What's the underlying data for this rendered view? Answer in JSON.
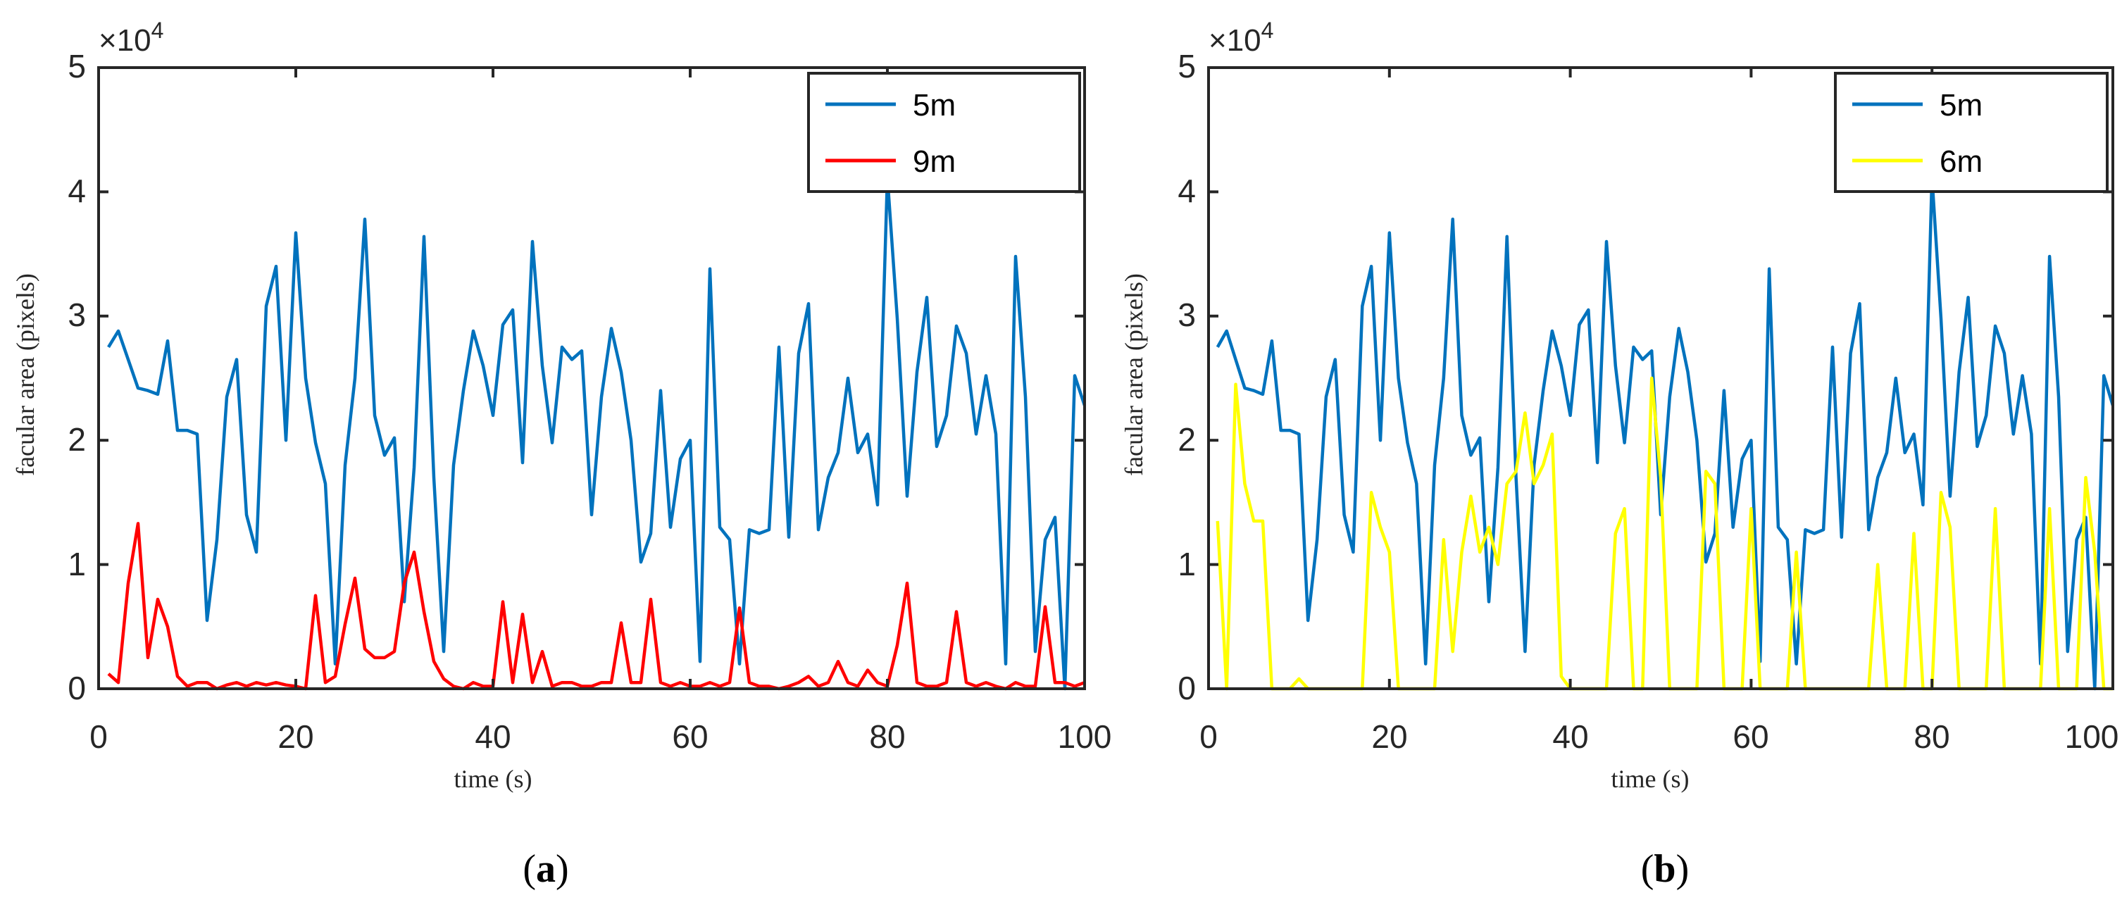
{
  "chart_data": [
    {
      "type": "line",
      "panel_label": {
        "open": "(",
        "letter": "a",
        "close": ")"
      },
      "xlabel": "time (s)",
      "ylabel": "facular area (pixels)",
      "y_exponent": {
        "base": "×10",
        "power": "4"
      },
      "xlim": [
        0,
        100
      ],
      "ylim": [
        0,
        5
      ],
      "xticks": [
        "0",
        "20",
        "40",
        "60",
        "80",
        "100"
      ],
      "yticks": [
        "0",
        "1",
        "2",
        "3",
        "4",
        "5"
      ],
      "legend_position": "top-right",
      "series": [
        {
          "name": "5m",
          "color": "#0072BD",
          "x": [
            1,
            2,
            3,
            4,
            5,
            6,
            7,
            8,
            9,
            10,
            11,
            12,
            13,
            14,
            15,
            16,
            17,
            18,
            19,
            20,
            21,
            22,
            23,
            24,
            25,
            26,
            27,
            28,
            29,
            30,
            31,
            32,
            33,
            34,
            35,
            36,
            37,
            38,
            39,
            40,
            41,
            42,
            43,
            44,
            45,
            46,
            47,
            48,
            49,
            50,
            51,
            52,
            53,
            54,
            55,
            56,
            57,
            58,
            59,
            60,
            61,
            62,
            63,
            64,
            65,
            66,
            67,
            68,
            69,
            70,
            71,
            72,
            73,
            74,
            75,
            76,
            77,
            78,
            79,
            80,
            81,
            82,
            83,
            84,
            85,
            86,
            87,
            88,
            89,
            90,
            91,
            92,
            93,
            94,
            95,
            96,
            97,
            98,
            99,
            100
          ],
          "values": [
            2.75,
            2.88,
            2.65,
            2.42,
            2.4,
            2.37,
            2.8,
            2.08,
            2.08,
            2.05,
            0.55,
            1.2,
            2.35,
            2.65,
            1.4,
            1.1,
            3.08,
            3.4,
            2.0,
            3.67,
            2.5,
            1.98,
            1.65,
            0.2,
            1.8,
            2.5,
            3.78,
            2.2,
            1.88,
            2.02,
            0.7,
            1.78,
            3.64,
            1.7,
            0.3,
            1.8,
            2.4,
            2.88,
            2.6,
            2.2,
            2.93,
            3.05,
            1.82,
            3.6,
            2.6,
            1.98,
            2.75,
            2.65,
            2.72,
            1.4,
            2.35,
            2.9,
            2.55,
            2.0,
            1.02,
            1.25,
            2.4,
            1.3,
            1.85,
            2.0,
            0.22,
            3.38,
            1.3,
            1.2,
            0.2,
            1.28,
            1.25,
            1.28,
            2.75,
            1.22,
            2.7,
            3.1,
            1.28,
            1.7,
            1.9,
            2.5,
            1.9,
            2.05,
            1.48,
            4.12,
            2.98,
            1.55,
            2.55,
            3.15,
            1.95,
            2.2,
            2.92,
            2.7,
            2.05,
            2.52,
            2.05,
            0.2,
            3.48,
            2.35,
            0.3,
            1.2,
            1.38,
            0.0,
            2.52,
            2.28
          ]
        },
        {
          "name": "9m",
          "color": "#FF0000",
          "x": [
            1,
            2,
            3,
            4,
            5,
            6,
            7,
            8,
            9,
            10,
            11,
            12,
            13,
            14,
            15,
            16,
            17,
            18,
            19,
            20,
            21,
            22,
            23,
            24,
            25,
            26,
            27,
            28,
            29,
            30,
            31,
            32,
            33,
            34,
            35,
            36,
            37,
            38,
            39,
            40,
            41,
            42,
            43,
            44,
            45,
            46,
            47,
            48,
            49,
            50,
            51,
            52,
            53,
            54,
            55,
            56,
            57,
            58,
            59,
            60,
            61,
            62,
            63,
            64,
            65,
            66,
            67,
            68,
            69,
            70,
            71,
            72,
            73,
            74,
            75,
            76,
            77,
            78,
            79,
            80,
            81,
            82,
            83,
            84,
            85,
            86,
            87,
            88,
            89,
            90,
            91,
            92,
            93,
            94,
            95,
            96,
            97,
            98,
            99,
            100
          ],
          "values": [
            0.12,
            0.05,
            0.85,
            1.33,
            0.25,
            0.72,
            0.5,
            0.1,
            0.02,
            0.05,
            0.05,
            0.0,
            0.03,
            0.05,
            0.02,
            0.05,
            0.03,
            0.05,
            0.03,
            0.02,
            0.0,
            0.75,
            0.05,
            0.1,
            0.52,
            0.89,
            0.32,
            0.25,
            0.25,
            0.3,
            0.85,
            1.1,
            0.62,
            0.22,
            0.08,
            0.02,
            0.0,
            0.05,
            0.02,
            0.02,
            0.7,
            0.05,
            0.6,
            0.05,
            0.3,
            0.02,
            0.05,
            0.05,
            0.02,
            0.02,
            0.05,
            0.05,
            0.53,
            0.05,
            0.05,
            0.72,
            0.05,
            0.02,
            0.05,
            0.02,
            0.02,
            0.05,
            0.02,
            0.05,
            0.65,
            0.05,
            0.02,
            0.02,
            0.0,
            0.02,
            0.05,
            0.1,
            0.02,
            0.05,
            0.22,
            0.05,
            0.02,
            0.15,
            0.05,
            0.02,
            0.35,
            0.85,
            0.05,
            0.02,
            0.02,
            0.05,
            0.62,
            0.05,
            0.02,
            0.05,
            0.02,
            0.0,
            0.05,
            0.02,
            0.02,
            0.66,
            0.05,
            0.05,
            0.02,
            0.05
          ]
        }
      ]
    },
    {
      "type": "line",
      "panel_label": {
        "open": "(",
        "letter": "b",
        "close": ")"
      },
      "xlabel": "time (s)",
      "ylabel": "facular area (pixels)",
      "y_exponent": {
        "base": "×10",
        "power": "4"
      },
      "xlim": [
        0,
        100
      ],
      "ylim": [
        0,
        5
      ],
      "xticks": [
        "0",
        "20",
        "40",
        "60",
        "80",
        "100"
      ],
      "yticks": [
        "0",
        "1",
        "2",
        "3",
        "4",
        "5"
      ],
      "legend_position": "top-right",
      "series": [
        {
          "name": "5m",
          "color": "#0072BD",
          "x": [
            1,
            2,
            3,
            4,
            5,
            6,
            7,
            8,
            9,
            10,
            11,
            12,
            13,
            14,
            15,
            16,
            17,
            18,
            19,
            20,
            21,
            22,
            23,
            24,
            25,
            26,
            27,
            28,
            29,
            30,
            31,
            32,
            33,
            34,
            35,
            36,
            37,
            38,
            39,
            40,
            41,
            42,
            43,
            44,
            45,
            46,
            47,
            48,
            49,
            50,
            51,
            52,
            53,
            54,
            55,
            56,
            57,
            58,
            59,
            60,
            61,
            62,
            63,
            64,
            65,
            66,
            67,
            68,
            69,
            70,
            71,
            72,
            73,
            74,
            75,
            76,
            77,
            78,
            79,
            80,
            81,
            82,
            83,
            84,
            85,
            86,
            87,
            88,
            89,
            90,
            91,
            92,
            93,
            94,
            95,
            96,
            97,
            98,
            99,
            100
          ],
          "values": [
            2.75,
            2.88,
            2.65,
            2.42,
            2.4,
            2.37,
            2.8,
            2.08,
            2.08,
            2.05,
            0.55,
            1.2,
            2.35,
            2.65,
            1.4,
            1.1,
            3.08,
            3.4,
            2.0,
            3.67,
            2.5,
            1.98,
            1.65,
            0.2,
            1.8,
            2.5,
            3.78,
            2.2,
            1.88,
            2.02,
            0.7,
            1.78,
            3.64,
            1.7,
            0.3,
            1.8,
            2.4,
            2.88,
            2.6,
            2.2,
            2.93,
            3.05,
            1.82,
            3.6,
            2.6,
            1.98,
            2.75,
            2.65,
            2.72,
            1.4,
            2.35,
            2.9,
            2.55,
            2.0,
            1.02,
            1.25,
            2.4,
            1.3,
            1.85,
            2.0,
            0.22,
            3.38,
            1.3,
            1.2,
            0.2,
            1.28,
            1.25,
            1.28,
            2.75,
            1.22,
            2.7,
            3.1,
            1.28,
            1.7,
            1.9,
            2.5,
            1.9,
            2.05,
            1.48,
            4.12,
            2.98,
            1.55,
            2.55,
            3.15,
            1.95,
            2.2,
            2.92,
            2.7,
            2.05,
            2.52,
            2.05,
            0.2,
            3.48,
            2.35,
            0.3,
            1.2,
            1.38,
            0.0,
            2.52,
            2.28
          ]
        },
        {
          "name": "6m",
          "color": "#FFFF00",
          "x": [
            1,
            2,
            3,
            4,
            5,
            6,
            7,
            8,
            9,
            10,
            11,
            12,
            13,
            14,
            15,
            16,
            17,
            18,
            19,
            20,
            21,
            22,
            23,
            24,
            25,
            26,
            27,
            28,
            29,
            30,
            31,
            32,
            33,
            34,
            35,
            36,
            37,
            38,
            39,
            40,
            41,
            42,
            43,
            44,
            45,
            46,
            47,
            48,
            49,
            50,
            51,
            52,
            53,
            54,
            55,
            56,
            57,
            58,
            59,
            60,
            61,
            62,
            63,
            64,
            65,
            66,
            67,
            68,
            69,
            70,
            71,
            72,
            73,
            74,
            75,
            76,
            77,
            78,
            79,
            80,
            81,
            82,
            83,
            84,
            85,
            86,
            87,
            88,
            89,
            90,
            91,
            92,
            93,
            94,
            95,
            96,
            97,
            98,
            99,
            100
          ],
          "values": [
            1.35,
            0.0,
            2.45,
            1.65,
            1.35,
            1.35,
            0.0,
            0.0,
            0.0,
            0.08,
            0.0,
            0.0,
            0.0,
            0.0,
            0.0,
            0.0,
            0.0,
            1.58,
            1.3,
            1.1,
            0.0,
            0.0,
            0.0,
            0.0,
            0.0,
            1.2,
            0.3,
            1.1,
            1.55,
            1.1,
            1.3,
            1.0,
            1.65,
            1.75,
            2.22,
            1.65,
            1.8,
            2.05,
            0.1,
            0.0,
            0.0,
            0.0,
            0.0,
            0.0,
            1.25,
            1.45,
            0.0,
            0.0,
            2.5,
            1.7,
            0.0,
            0.0,
            0.0,
            0.0,
            1.75,
            1.65,
            0.0,
            0.0,
            0.0,
            1.45,
            0.0,
            0.0,
            0.0,
            0.0,
            1.1,
            0.0,
            0.0,
            0.0,
            0.0,
            0.0,
            0.0,
            0.0,
            0.0,
            1.0,
            0.0,
            0.0,
            0.0,
            1.25,
            0.0,
            0.0,
            1.58,
            1.3,
            0.0,
            0.0,
            0.0,
            0.0,
            1.45,
            0.0,
            0.0,
            0.0,
            0.0,
            0.0,
            1.45,
            0.0,
            0.0,
            0.0,
            1.7,
            1.1,
            0.0,
            0.0
          ]
        }
      ]
    }
  ]
}
